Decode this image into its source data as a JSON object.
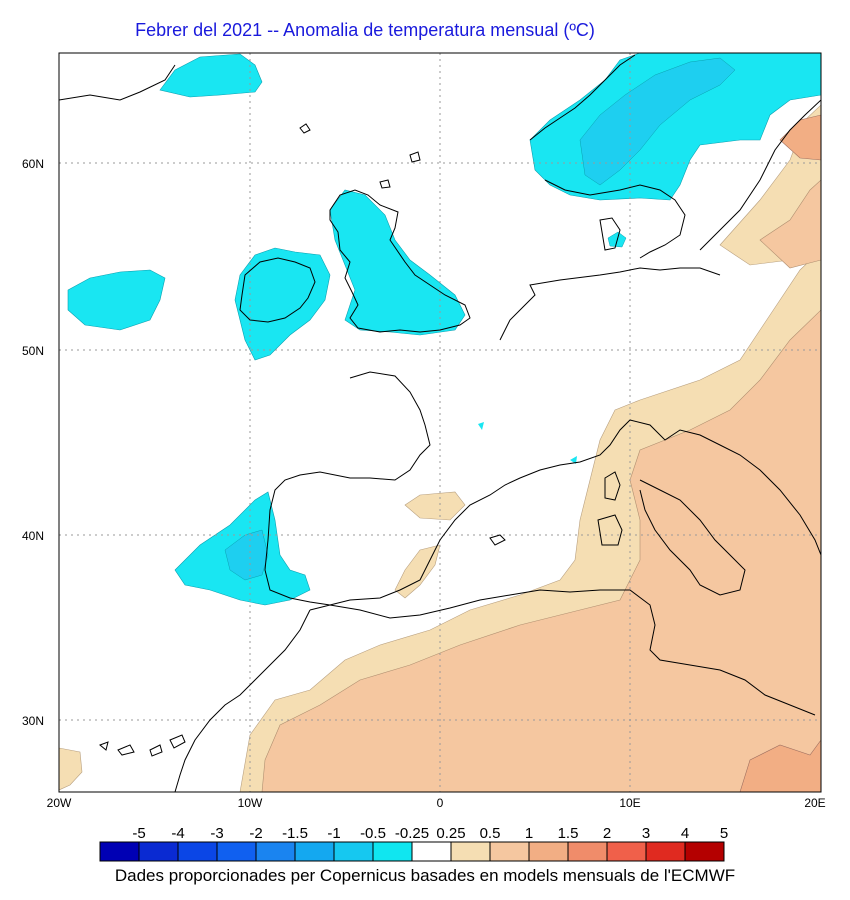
{
  "title": "Febrer del 2021 -- Anomalia de temperatura mensual (ºC)",
  "lat_labels": [
    "60N",
    "50N",
    "40N",
    "30N"
  ],
  "lon_labels": [
    "20W",
    "10W",
    "0",
    "10E",
    "20E"
  ],
  "colorbar": {
    "labels": [
      "-5",
      "-4",
      "-3",
      "-2",
      "-1.5",
      "-1",
      "-0.5",
      "-0.25",
      "0.25",
      "0.5",
      "1",
      "1.5",
      "2",
      "3",
      "4",
      "5"
    ],
    "colors": [
      "#0000b4",
      "#0a2ad2",
      "#0b46e6",
      "#1060f0",
      "#1a84f0",
      "#14a8f0",
      "#16c8f0",
      "#10e6f0",
      "#ffffff",
      "#f5deb3",
      "#f5c7a0",
      "#f2ae84",
      "#f08c6a",
      "#f0604a",
      "#e02a20",
      "#b40000"
    ]
  },
  "credit": "Dades proporcionades per Copernicus basades en models mensuals de l'ECMWF",
  "legend_colors": {
    "cyan": "#19e6f2",
    "cyan_light": "#1ecff0",
    "wheat": "#f5deb3",
    "peach": "#f5c7a0",
    "salmon": "#f2ae84"
  }
}
